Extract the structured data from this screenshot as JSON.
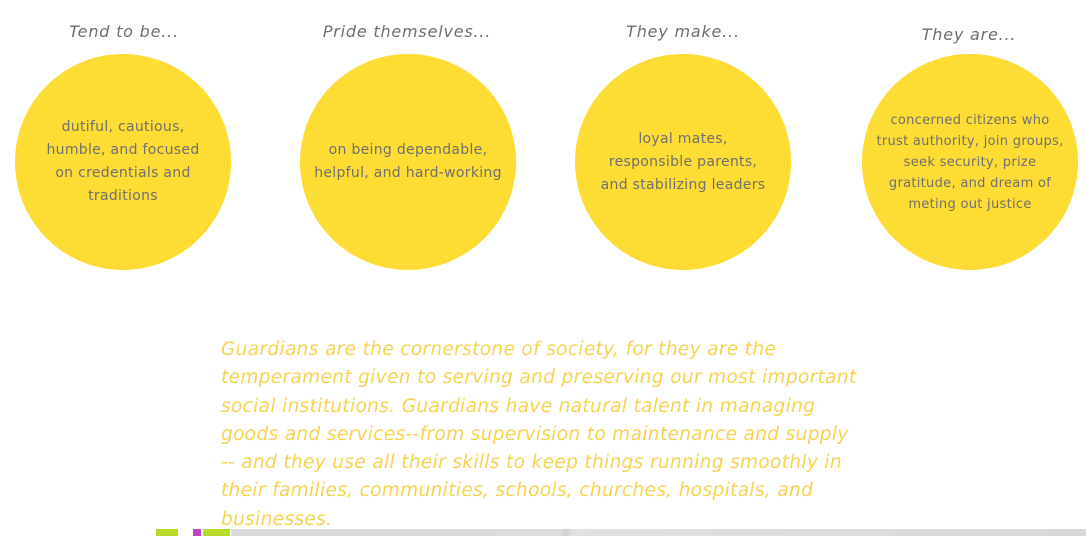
{
  "theme": {
    "circle_color": "#fddc33",
    "accent_text_color": "#f7d24e",
    "muted_text_color": "#707070"
  },
  "columns": [
    {
      "heading": "Tend to be...",
      "body": "dutiful, cautious, humble, and focused on credentials and traditions"
    },
    {
      "heading": "Pride themselves...",
      "body": "on being dependable, helpful, and hard-working"
    },
    {
      "heading": "They make...",
      "body": "loyal mates, responsible parents, and stabilizing leaders"
    },
    {
      "heading": "They are...",
      "body": "concerned citizens who trust authority, join groups, seek security, prize gratitude, and dream of meting out justice"
    }
  ],
  "description": "Guardians are the cornerstone of society, for they are the temperament given to serving and preserving our most important social institutions. Guardians have natural talent in managing goods and services--from supervision to maintenance and supply -- and they use all their skills to keep things running smoothly in their families, communities, schools, churches, hospitals, and businesses."
}
